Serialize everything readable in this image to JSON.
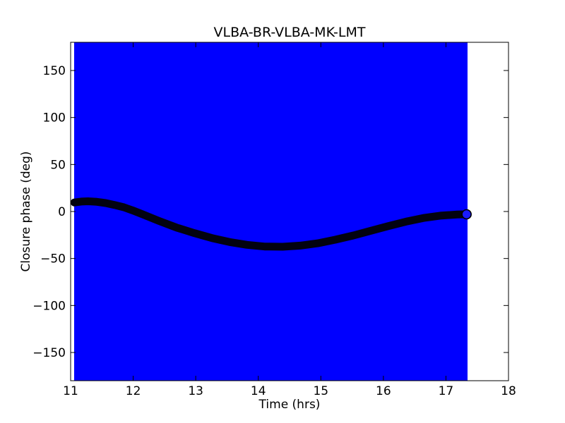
{
  "figure": {
    "background": "#ffffff",
    "frame_color": "#000000"
  },
  "chart_data": {
    "type": "line",
    "title": "VLBA-BR-VLBA-MK-LMT",
    "xlabel": "Time (hrs)",
    "ylabel": "Closure phase (deg)",
    "xlim": [
      11,
      18
    ],
    "ylim": [
      -180,
      180
    ],
    "xticks": [
      11,
      12,
      13,
      14,
      15,
      16,
      17,
      18
    ],
    "xtick_labels": [
      "11",
      "12",
      "13",
      "14",
      "15",
      "16",
      "17",
      "18"
    ],
    "yticks": [
      -150,
      -100,
      -50,
      0,
      50,
      100,
      150
    ],
    "ytick_labels": [
      "−150",
      "−100",
      "−50",
      "0",
      "50",
      "100",
      "150"
    ],
    "grid": false,
    "legend": "none",
    "tick_direction": "in",
    "error_band": {
      "color": "#0000ff",
      "x_start": 11.056,
      "x_end": 17.345,
      "y_min": -180,
      "y_max": 180
    },
    "model_curve": {
      "name": "closure phase curve",
      "color": "#020210",
      "line_width": 11,
      "x": [
        11.06,
        11.17,
        11.28,
        11.42,
        11.56,
        11.7,
        11.85,
        11.99,
        12.13,
        12.41,
        12.69,
        12.98,
        13.26,
        13.54,
        13.82,
        14.1,
        14.39,
        14.67,
        14.95,
        15.23,
        15.52,
        15.8,
        16.08,
        16.36,
        16.64,
        16.93,
        17.18,
        17.3
      ],
      "y": [
        9.6,
        10.6,
        10.9,
        10.3,
        9.0,
        7.0,
        4.5,
        1.2,
        -2.5,
        -10.0,
        -17.0,
        -23.0,
        -28.3,
        -32.5,
        -35.5,
        -37.3,
        -37.5,
        -36.3,
        -33.8,
        -30.0,
        -25.5,
        -20.5,
        -15.5,
        -10.8,
        -6.9,
        -4.3,
        -3.2,
        -3.0
      ]
    },
    "last_point_marker": {
      "x": 17.33,
      "y": -3.0,
      "radius": 6.5,
      "fill": "#1a1aff",
      "edge_color": "#000000"
    }
  }
}
